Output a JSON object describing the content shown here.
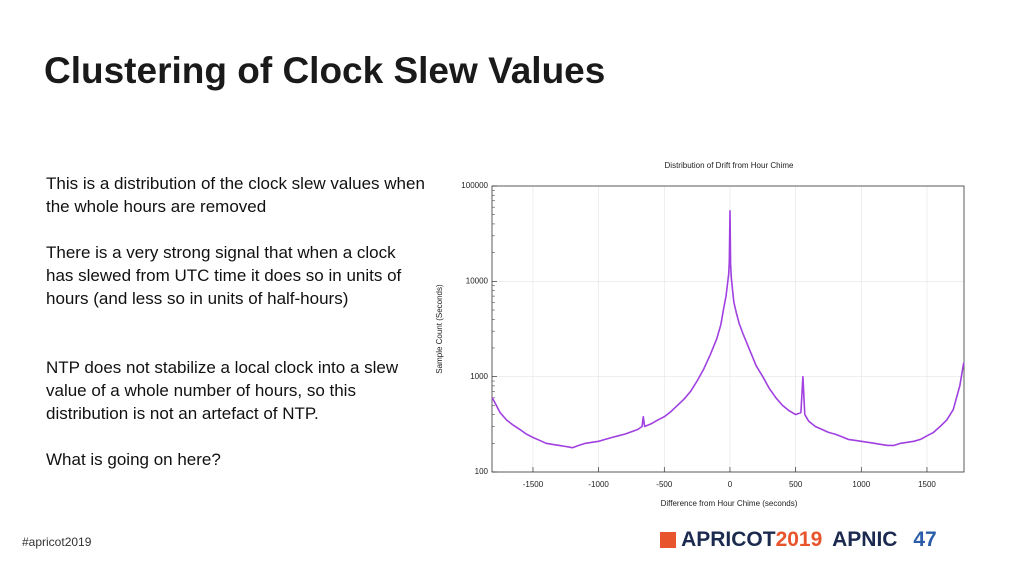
{
  "slide": {
    "title": "Clustering of Clock Slew Values",
    "paragraphs": [
      "This is a distribution of the clock slew values when the whole hours are removed",
      "There is a very strong signal that when a clock has slewed from UTC time it does so in units of hours (and less so in units of half-hours)",
      "NTP does not stabilize a local clock into a slew value of a whole number of hours, so this distribution is not an artefact of NTP.",
      "What is going on here?"
    ],
    "footer": "#apricot2019",
    "logo": {
      "apricot": "APRICOT",
      "year": "2019",
      "apnic": "APNIC",
      "number": "47"
    }
  },
  "chart_data": {
    "type": "line",
    "title": "Distribution of Drift from Hour Chime",
    "x_label": "Difference from Hour Chime (seconds)",
    "y_label": "Sample Count (Seconds)",
    "color": "#a040e0",
    "log_y": true,
    "grid": true,
    "x": [
      -1810,
      -1750,
      -1700,
      -1650,
      -1600,
      -1550,
      -1500,
      -1450,
      -1400,
      -1350,
      -1300,
      -1250,
      -1200,
      -1150,
      -1100,
      -1050,
      -1000,
      -950,
      -900,
      -850,
      -800,
      -750,
      -700,
      -670,
      -660,
      -650,
      -600,
      -550,
      -500,
      -450,
      -400,
      -350,
      -300,
      -250,
      -200,
      -150,
      -100,
      -70,
      -50,
      -30,
      -20,
      -10,
      -5,
      0,
      5,
      10,
      20,
      30,
      50,
      70,
      100,
      150,
      200,
      250,
      300,
      350,
      400,
      450,
      500,
      540,
      555,
      570,
      600,
      650,
      700,
      750,
      800,
      850,
      900,
      950,
      1000,
      1050,
      1100,
      1150,
      1200,
      1250,
      1300,
      1350,
      1400,
      1450,
      1500,
      1550,
      1600,
      1650,
      1700,
      1750,
      1780
    ],
    "values": [
      600,
      420,
      350,
      310,
      280,
      250,
      230,
      215,
      200,
      195,
      190,
      185,
      180,
      190,
      200,
      205,
      210,
      220,
      230,
      240,
      250,
      265,
      280,
      300,
      380,
      300,
      320,
      350,
      380,
      430,
      500,
      580,
      700,
      900,
      1200,
      1700,
      2500,
      3500,
      5000,
      7000,
      9000,
      12000,
      16000,
      55000,
      15000,
      11000,
      8000,
      6000,
      4600,
      3600,
      2800,
      1900,
      1300,
      1000,
      750,
      600,
      500,
      440,
      400,
      420,
      1000,
      400,
      340,
      300,
      280,
      260,
      250,
      235,
      220,
      215,
      210,
      205,
      200,
      195,
      190,
      190,
      200,
      205,
      210,
      220,
      240,
      260,
      300,
      350,
      450,
      800,
      1400
    ],
    "xlim": [
      -1812,
      1782
    ],
    "ylim": [
      100,
      100000
    ],
    "xticks": [
      -1500,
      -1000,
      -500,
      0,
      500,
      1000,
      1500
    ],
    "yticks": [
      100,
      1000,
      10000,
      100000
    ]
  }
}
